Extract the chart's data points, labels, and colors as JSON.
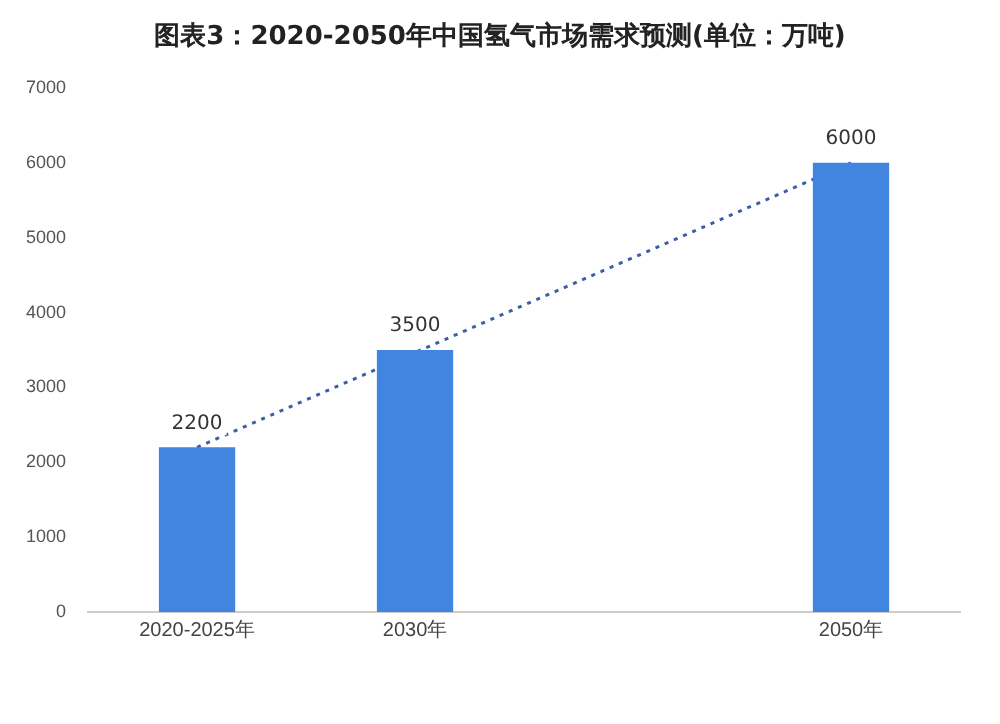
{
  "chart_data": {
    "type": "bar",
    "title": "图表3：2020-2050年中国氢气市场需求预测(单位：万吨)",
    "categories": [
      "2020-2025年",
      "2030年",
      null,
      "2050年"
    ],
    "series": [
      {
        "color": "#4185e0",
        "values": [
          2200,
          3500,
          null,
          6000
        ],
        "value_labels": [
          "2200",
          "3500",
          null,
          "6000"
        ]
      },
      {
        "type": "line",
        "color": "#3a5fa8",
        "line_style": "dotted",
        "marker": "none",
        "values": [
          2200,
          null,
          null,
          6000
        ]
      }
    ],
    "ylim": [
      0,
      7000
    ],
    "yticks": [
      0,
      1000,
      2000,
      3000,
      4000,
      5000,
      6000,
      7000
    ],
    "grid": false,
    "legend": false
  }
}
